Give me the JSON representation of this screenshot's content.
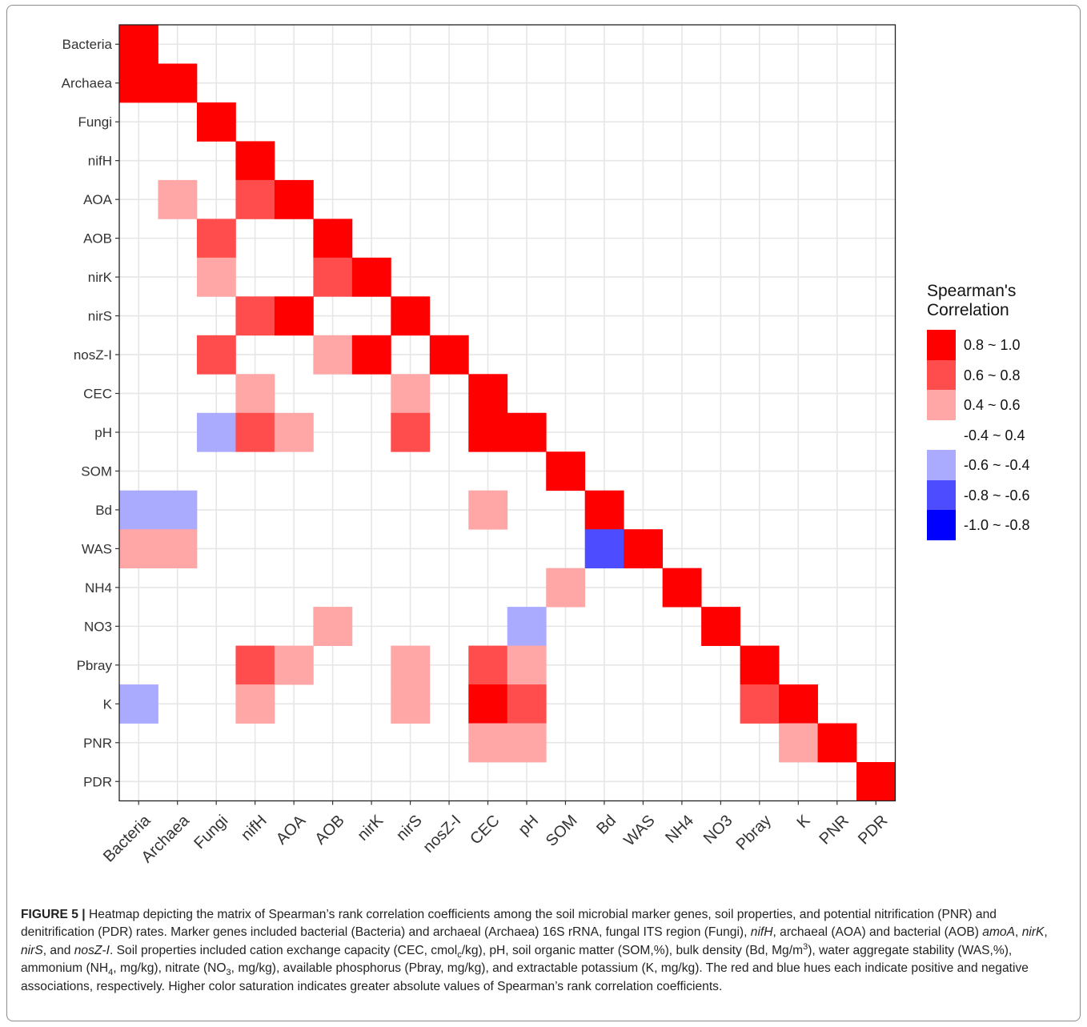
{
  "chart_data": {
    "type": "heatmap",
    "title": "",
    "xlabel": "",
    "ylabel": "",
    "variables": [
      "Bacteria",
      "Archaea",
      "Fungi",
      "nifH",
      "AOA",
      "AOB",
      "nirK",
      "nirS",
      "nosZ-I",
      "CEC",
      "pH",
      "SOM",
      "Bd",
      "WAS",
      "NH4",
      "NO3",
      "Pbray",
      "K",
      "PNR",
      "PDR"
    ],
    "grid": true,
    "legend_position": "right",
    "legend": {
      "title_line1": "Spearman's",
      "title_line2": "Correlation",
      "bins": [
        {
          "label": "0.8 ~ 1.0",
          "color": "#ff0000"
        },
        {
          "label": "0.6 ~ 0.8",
          "color": "#ff4d4d"
        },
        {
          "label": "0.4 ~ 0.6",
          "color": "#ffa6a6"
        },
        {
          "label": "-0.4 ~ 0.4",
          "color": "#ffffff"
        },
        {
          "label": "-0.6 ~ -0.4",
          "color": "#aaaaff"
        },
        {
          "label": "-0.8 ~ -0.6",
          "color": "#4d4dff"
        },
        {
          "label": "-1.0 ~ -0.8",
          "color": "#0000ff"
        }
      ]
    },
    "cells": [
      {
        "row": "Bacteria",
        "col": "Bacteria",
        "value": 0.9
      },
      {
        "row": "Archaea",
        "col": "Bacteria",
        "value": 0.9
      },
      {
        "row": "Archaea",
        "col": "Archaea",
        "value": 0.9
      },
      {
        "row": "Fungi",
        "col": "Fungi",
        "value": 0.9
      },
      {
        "row": "nifH",
        "col": "nifH",
        "value": 0.9
      },
      {
        "row": "AOA",
        "col": "Archaea",
        "value": 0.5
      },
      {
        "row": "AOA",
        "col": "nifH",
        "value": 0.7
      },
      {
        "row": "AOA",
        "col": "AOA",
        "value": 0.9
      },
      {
        "row": "AOB",
        "col": "Fungi",
        "value": 0.7
      },
      {
        "row": "AOB",
        "col": "AOB",
        "value": 0.9
      },
      {
        "row": "nirK",
        "col": "Fungi",
        "value": 0.5
      },
      {
        "row": "nirK",
        "col": "AOB",
        "value": 0.7
      },
      {
        "row": "nirK",
        "col": "nirK",
        "value": 0.9
      },
      {
        "row": "nirS",
        "col": "nifH",
        "value": 0.7
      },
      {
        "row": "nirS",
        "col": "AOA",
        "value": 0.9
      },
      {
        "row": "nirS",
        "col": "nirS",
        "value": 0.9
      },
      {
        "row": "nosZ-I",
        "col": "Fungi",
        "value": 0.7
      },
      {
        "row": "nosZ-I",
        "col": "AOB",
        "value": 0.5
      },
      {
        "row": "nosZ-I",
        "col": "nirK",
        "value": 0.9
      },
      {
        "row": "nosZ-I",
        "col": "nosZ-I",
        "value": 0.9
      },
      {
        "row": "CEC",
        "col": "nifH",
        "value": 0.5
      },
      {
        "row": "CEC",
        "col": "nirS",
        "value": 0.5
      },
      {
        "row": "CEC",
        "col": "CEC",
        "value": 0.9
      },
      {
        "row": "pH",
        "col": "Fungi",
        "value": -0.5
      },
      {
        "row": "pH",
        "col": "nifH",
        "value": 0.7
      },
      {
        "row": "pH",
        "col": "AOA",
        "value": 0.5
      },
      {
        "row": "pH",
        "col": "nirS",
        "value": 0.7
      },
      {
        "row": "pH",
        "col": "CEC",
        "value": 0.9
      },
      {
        "row": "pH",
        "col": "pH",
        "value": 0.9
      },
      {
        "row": "SOM",
        "col": "SOM",
        "value": 0.9
      },
      {
        "row": "Bd",
        "col": "Bacteria",
        "value": -0.5
      },
      {
        "row": "Bd",
        "col": "Archaea",
        "value": -0.5
      },
      {
        "row": "Bd",
        "col": "CEC",
        "value": 0.5
      },
      {
        "row": "Bd",
        "col": "Bd",
        "value": 0.9
      },
      {
        "row": "WAS",
        "col": "Bacteria",
        "value": 0.5
      },
      {
        "row": "WAS",
        "col": "Archaea",
        "value": 0.5
      },
      {
        "row": "WAS",
        "col": "Bd",
        "value": -0.7
      },
      {
        "row": "WAS",
        "col": "WAS",
        "value": 0.9
      },
      {
        "row": "NH4",
        "col": "SOM",
        "value": 0.5
      },
      {
        "row": "NH4",
        "col": "NH4",
        "value": 0.9
      },
      {
        "row": "NO3",
        "col": "AOB",
        "value": 0.5
      },
      {
        "row": "NO3",
        "col": "pH",
        "value": -0.5
      },
      {
        "row": "NO3",
        "col": "NO3",
        "value": 0.9
      },
      {
        "row": "Pbray",
        "col": "nifH",
        "value": 0.7
      },
      {
        "row": "Pbray",
        "col": "AOA",
        "value": 0.5
      },
      {
        "row": "Pbray",
        "col": "nirS",
        "value": 0.5
      },
      {
        "row": "Pbray",
        "col": "CEC",
        "value": 0.7
      },
      {
        "row": "Pbray",
        "col": "pH",
        "value": 0.5
      },
      {
        "row": "Pbray",
        "col": "Pbray",
        "value": 0.9
      },
      {
        "row": "K",
        "col": "Bacteria",
        "value": -0.5
      },
      {
        "row": "K",
        "col": "nifH",
        "value": 0.5
      },
      {
        "row": "K",
        "col": "nirS",
        "value": 0.5
      },
      {
        "row": "K",
        "col": "CEC",
        "value": 0.9
      },
      {
        "row": "K",
        "col": "pH",
        "value": 0.7
      },
      {
        "row": "K",
        "col": "Pbray",
        "value": 0.7
      },
      {
        "row": "K",
        "col": "K",
        "value": 0.9
      },
      {
        "row": "PNR",
        "col": "CEC",
        "value": 0.5
      },
      {
        "row": "PNR",
        "col": "pH",
        "value": 0.5
      },
      {
        "row": "PNR",
        "col": "K",
        "value": 0.5
      },
      {
        "row": "PNR",
        "col": "PNR",
        "value": 0.9
      },
      {
        "row": "PDR",
        "col": "PDR",
        "value": 0.9
      }
    ]
  },
  "caption": {
    "label": "FIGURE 5 |",
    "t1": " Heatmap depicting the matrix of Spearman’s rank correlation coefficients among the soil microbial marker genes, soil properties, and potential nitrification (PNR) and denitrification (PDR) rates. Marker genes included bacterial (Bacteria) and archaeal (Archaea) 16S rRNA, fungal ITS region (Fungi), ",
    "i1": "nifH",
    "t2": ", archaeal (AOA) and bacterial (AOB) ",
    "i2": "amoA",
    "t3": ", ",
    "i3": "nirK",
    "t4": ", ",
    "i4": "nirS",
    "t5": ", and ",
    "i5": "nosZ-I",
    "t6": ". Soil properties included cation exchange capacity (CEC, cmol",
    "sub1": "c",
    "t7": "/kg), pH, soil organic matter (SOM,%), bulk density (Bd, Mg/m",
    "sup1": "3",
    "t8": "), water aggregate stability (WAS,%), ammonium (NH",
    "sub2": "4",
    "t9": ", mg/kg), nitrate (NO",
    "sub3": "3",
    "t10": ", mg/kg), available phosphorus (Pbray, mg/kg), and extractable potassium (K, mg/kg). The red and blue hues each indicate positive and negative associations, respectively. Higher color saturation indicates greater absolute values of Spearman’s rank correlation coefficients."
  }
}
